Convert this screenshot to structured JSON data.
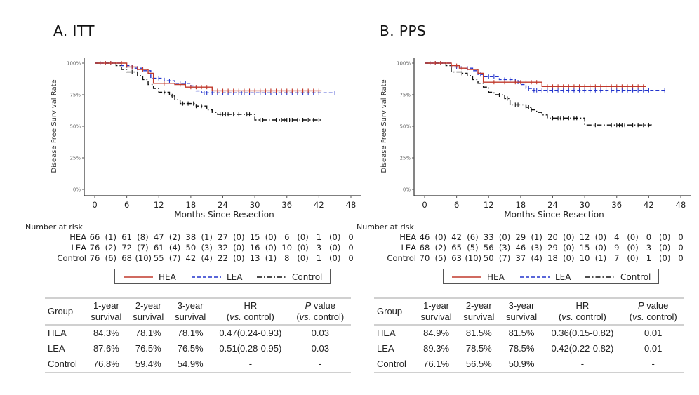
{
  "chart_data": [
    {
      "type": "line",
      "subtype": "kaplan-meier",
      "panel": "A",
      "title": "A.  ITT",
      "xlabel": "Months Since Resection",
      "ylabel": "Disease Free Survival Rate",
      "xlim": [
        0,
        48
      ],
      "ylim": [
        0,
        100
      ],
      "xticks": [
        0,
        6,
        12,
        18,
        24,
        30,
        36,
        42,
        48
      ],
      "yticks": [
        0,
        25,
        50,
        75,
        100
      ],
      "ytick_labels": [
        "0%",
        "25%",
        "50%",
        "75%",
        "100%"
      ],
      "grid": false,
      "series": [
        {
          "name": "HEA",
          "color": "#c0392b",
          "style": "solid",
          "steps": [
            [
              0,
              100
            ],
            [
              5,
              100
            ],
            [
              6,
              97
            ],
            [
              8,
              95
            ],
            [
              10,
              92
            ],
            [
              11,
              84
            ],
            [
              15,
              83
            ],
            [
              17,
              81
            ],
            [
              22,
              78.1
            ],
            [
              42.5,
              78.1
            ]
          ],
          "censor": [
            1,
            2,
            3,
            5,
            7,
            9,
            13,
            16,
            18,
            19,
            20,
            21,
            23,
            24,
            25,
            26,
            27,
            28,
            29,
            30,
            31,
            32,
            33,
            34,
            35,
            36,
            37,
            38,
            39,
            40,
            41,
            42
          ]
        },
        {
          "name": "LEA",
          "color": "#2233cc",
          "style": "dashed",
          "steps": [
            [
              0,
              100
            ],
            [
              4,
              100
            ],
            [
              5,
              98
            ],
            [
              7,
              96
            ],
            [
              9,
              94
            ],
            [
              10.5,
              88
            ],
            [
              13,
              86
            ],
            [
              15,
              84
            ],
            [
              18,
              82
            ],
            [
              19,
              78
            ],
            [
              20,
              76.5
            ],
            [
              45,
              76.5
            ]
          ],
          "censor": [
            1,
            2,
            3,
            6,
            8,
            11,
            12,
            14,
            16,
            17,
            20.5,
            21,
            22,
            23,
            24,
            25,
            26,
            27,
            27.5,
            28,
            29,
            30,
            31,
            32,
            33,
            34,
            35,
            36,
            37,
            38,
            39,
            40,
            41,
            42,
            45
          ]
        },
        {
          "name": "Control",
          "color": "#111111",
          "style": "dashdot",
          "steps": [
            [
              0,
              100
            ],
            [
              3,
              100
            ],
            [
              4,
              98
            ],
            [
              5,
              95
            ],
            [
              6,
              93
            ],
            [
              8,
              90
            ],
            [
              9,
              87
            ],
            [
              10,
              83
            ],
            [
              11,
              80
            ],
            [
              12,
              77
            ],
            [
              14,
              74
            ],
            [
              15,
              71
            ],
            [
              16,
              68
            ],
            [
              19,
              66
            ],
            [
              21,
              63
            ],
            [
              22,
              61
            ],
            [
              23,
              59.4
            ],
            [
              30,
              55
            ],
            [
              42.5,
              54.9
            ]
          ],
          "censor": [
            7,
            13,
            14.5,
            16.5,
            17.5,
            18.5,
            19,
            20,
            23.5,
            24,
            24.5,
            25,
            26,
            27,
            28.5,
            29,
            31,
            31.5,
            34,
            35,
            35.5,
            36,
            36.5,
            37,
            38,
            39,
            40,
            41,
            42
          ]
        }
      ],
      "number_at_risk": {
        "label": "Number at risk",
        "rows": [
          {
            "group": "HEA",
            "counts": [
              "66",
              "(1)",
              "61",
              "(8)",
              "47",
              "(2)",
              "38",
              "(1)",
              "27",
              "(0)",
              "15",
              "(0)",
              "6",
              "(0)",
              "1",
              "(0)",
              "0"
            ]
          },
          {
            "group": "LEA",
            "counts": [
              "76",
              "(2)",
              "72",
              "(7)",
              "61",
              "(4)",
              "50",
              "(3)",
              "32",
              "(0)",
              "16",
              "(0)",
              "10",
              "(0)",
              "3",
              "(0)",
              "0"
            ]
          },
          {
            "group": "Control",
            "counts": [
              "76",
              "(6)",
              "68",
              "(10)",
              "55",
              "(7)",
              "42",
              "(4)",
              "22",
              "(0)",
              "13",
              "(1)",
              "8",
              "(0)",
              "1",
              "(0)",
              "0"
            ]
          }
        ]
      },
      "legend": [
        "HEA",
        "LEA",
        "Control"
      ],
      "legend_position": "bottom",
      "table": {
        "headers": [
          [
            "Group"
          ],
          [
            "1-year",
            "survival"
          ],
          [
            "2-year",
            "survival"
          ],
          [
            "3-year",
            "survival"
          ],
          [
            "HR",
            "(vs. control)"
          ],
          [
            "P value",
            "(vs. control)"
          ]
        ],
        "rows": [
          [
            "HEA",
            "84.3%",
            "78.1%",
            "78.1%",
            "0.47(0.24-0.93)",
            "0.03"
          ],
          [
            "LEA",
            "87.6%",
            "76.5%",
            "76.5%",
            "0.51(0.28-0.95)",
            "0.03"
          ],
          [
            "Control",
            "76.8%",
            "59.4%",
            "54.9%",
            "-",
            "-"
          ]
        ]
      }
    },
    {
      "type": "line",
      "subtype": "kaplan-meier",
      "panel": "B",
      "title": "B. PPS",
      "xlabel": "Months Since Resection",
      "ylabel": "Disease Free Survival Rate",
      "xlim": [
        0,
        48
      ],
      "ylim": [
        0,
        100
      ],
      "xticks": [
        0,
        6,
        12,
        18,
        24,
        30,
        36,
        42,
        48
      ],
      "yticks": [
        0,
        25,
        50,
        75,
        100
      ],
      "ytick_labels": [
        "0%",
        "25%",
        "50%",
        "75%",
        "100%"
      ],
      "grid": false,
      "series": [
        {
          "name": "HEA",
          "color": "#c0392b",
          "style": "solid",
          "steps": [
            [
              0,
              100
            ],
            [
              4,
              100
            ],
            [
              5,
              98
            ],
            [
              6.5,
              96
            ],
            [
              8,
              95
            ],
            [
              10,
              92
            ],
            [
              11,
              84.9
            ],
            [
              21.5,
              84.9
            ],
            [
              22,
              81.5
            ],
            [
              41.5,
              81.5
            ]
          ],
          "censor": [
            1,
            2,
            3,
            5,
            6,
            7,
            13,
            15,
            17,
            18,
            19,
            20,
            21,
            23,
            24,
            25,
            26,
            27,
            28,
            29,
            30,
            31,
            32,
            33,
            34,
            35,
            36,
            37,
            38,
            39,
            40,
            41
          ]
        },
        {
          "name": "LEA",
          "color": "#2233cc",
          "style": "dashed",
          "steps": [
            [
              0,
              100
            ],
            [
              4,
              100
            ],
            [
              5,
              97
            ],
            [
              7,
              96
            ],
            [
              9,
              94
            ],
            [
              10,
              91
            ],
            [
              11,
              89.3
            ],
            [
              14,
              87
            ],
            [
              17,
              85
            ],
            [
              18,
              83
            ],
            [
              19,
              80
            ],
            [
              20,
              78.5
            ],
            [
              45,
              78.5
            ]
          ],
          "censor": [
            1,
            2,
            3,
            6,
            8,
            10.5,
            12,
            13,
            15,
            16,
            17.5,
            19.5,
            20.5,
            21,
            22,
            23,
            24,
            25,
            26,
            27,
            28,
            29,
            30,
            31,
            32,
            33,
            34,
            35,
            36,
            37,
            38,
            39,
            40,
            41,
            42,
            45
          ]
        },
        {
          "name": "Control",
          "color": "#111111",
          "style": "dashdot",
          "steps": [
            [
              0,
              100
            ],
            [
              3,
              100
            ],
            [
              4,
              98
            ],
            [
              5,
              93
            ],
            [
              7,
              92
            ],
            [
              8,
              90
            ],
            [
              9,
              87
            ],
            [
              10,
              84
            ],
            [
              11,
              81
            ],
            [
              12,
              77
            ],
            [
              13,
              75
            ],
            [
              15,
              72
            ],
            [
              16,
              67
            ],
            [
              19,
              65
            ],
            [
              20,
              63
            ],
            [
              21,
              61
            ],
            [
              22,
              59
            ],
            [
              23,
              56.5
            ],
            [
              30,
              51
            ],
            [
              42.5,
              50.9
            ]
          ],
          "censor": [
            7,
            14,
            15.5,
            17,
            17.5,
            19,
            19.5,
            20,
            24,
            25,
            25.5,
            26,
            27,
            28,
            28.5,
            32,
            35,
            36,
            36.5,
            37,
            37.5,
            39,
            40,
            41,
            42
          ]
        }
      ],
      "number_at_risk": {
        "label": "Number at risk",
        "rows": [
          {
            "group": "HEA",
            "counts": [
              "46",
              "(0)",
              "42",
              "(6)",
              "33",
              "(0)",
              "29",
              "(1)",
              "20",
              "(0)",
              "12",
              "(0)",
              "4",
              "(0)",
              "0",
              "(0)",
              "0"
            ]
          },
          {
            "group": "LEA",
            "counts": [
              "68",
              "(2)",
              "65",
              "(5)",
              "56",
              "(3)",
              "46",
              "(3)",
              "29",
              "(0)",
              "15",
              "(0)",
              "9",
              "(0)",
              "3",
              "(0)",
              "0"
            ]
          },
          {
            "group": "Control",
            "counts": [
              "70",
              "(5)",
              "63",
              "(10)",
              "50",
              "(7)",
              "37",
              "(4)",
              "18",
              "(0)",
              "10",
              "(1)",
              "7",
              "(0)",
              "1",
              "(0)",
              "0"
            ]
          }
        ]
      },
      "legend": [
        "HEA",
        "LEA",
        "Control"
      ],
      "legend_position": "bottom",
      "table": {
        "headers": [
          [
            "Group"
          ],
          [
            "1-year",
            "survival"
          ],
          [
            "2-year",
            "survival"
          ],
          [
            "3-year",
            "survival"
          ],
          [
            "HR",
            "(vs. control)"
          ],
          [
            "P value",
            "(vs. control)"
          ]
        ],
        "rows": [
          [
            "HEA",
            "84.9%",
            "81.5%",
            "81.5%",
            "0.36(0.15-0.82)",
            "0.01"
          ],
          [
            "LEA",
            "89.3%",
            "78.5%",
            "78.5%",
            "0.42(0.22-0.82)",
            "0.01"
          ],
          [
            "Control",
            "76.1%",
            "56.5%",
            "50.9%",
            "-",
            "-"
          ]
        ]
      }
    }
  ]
}
